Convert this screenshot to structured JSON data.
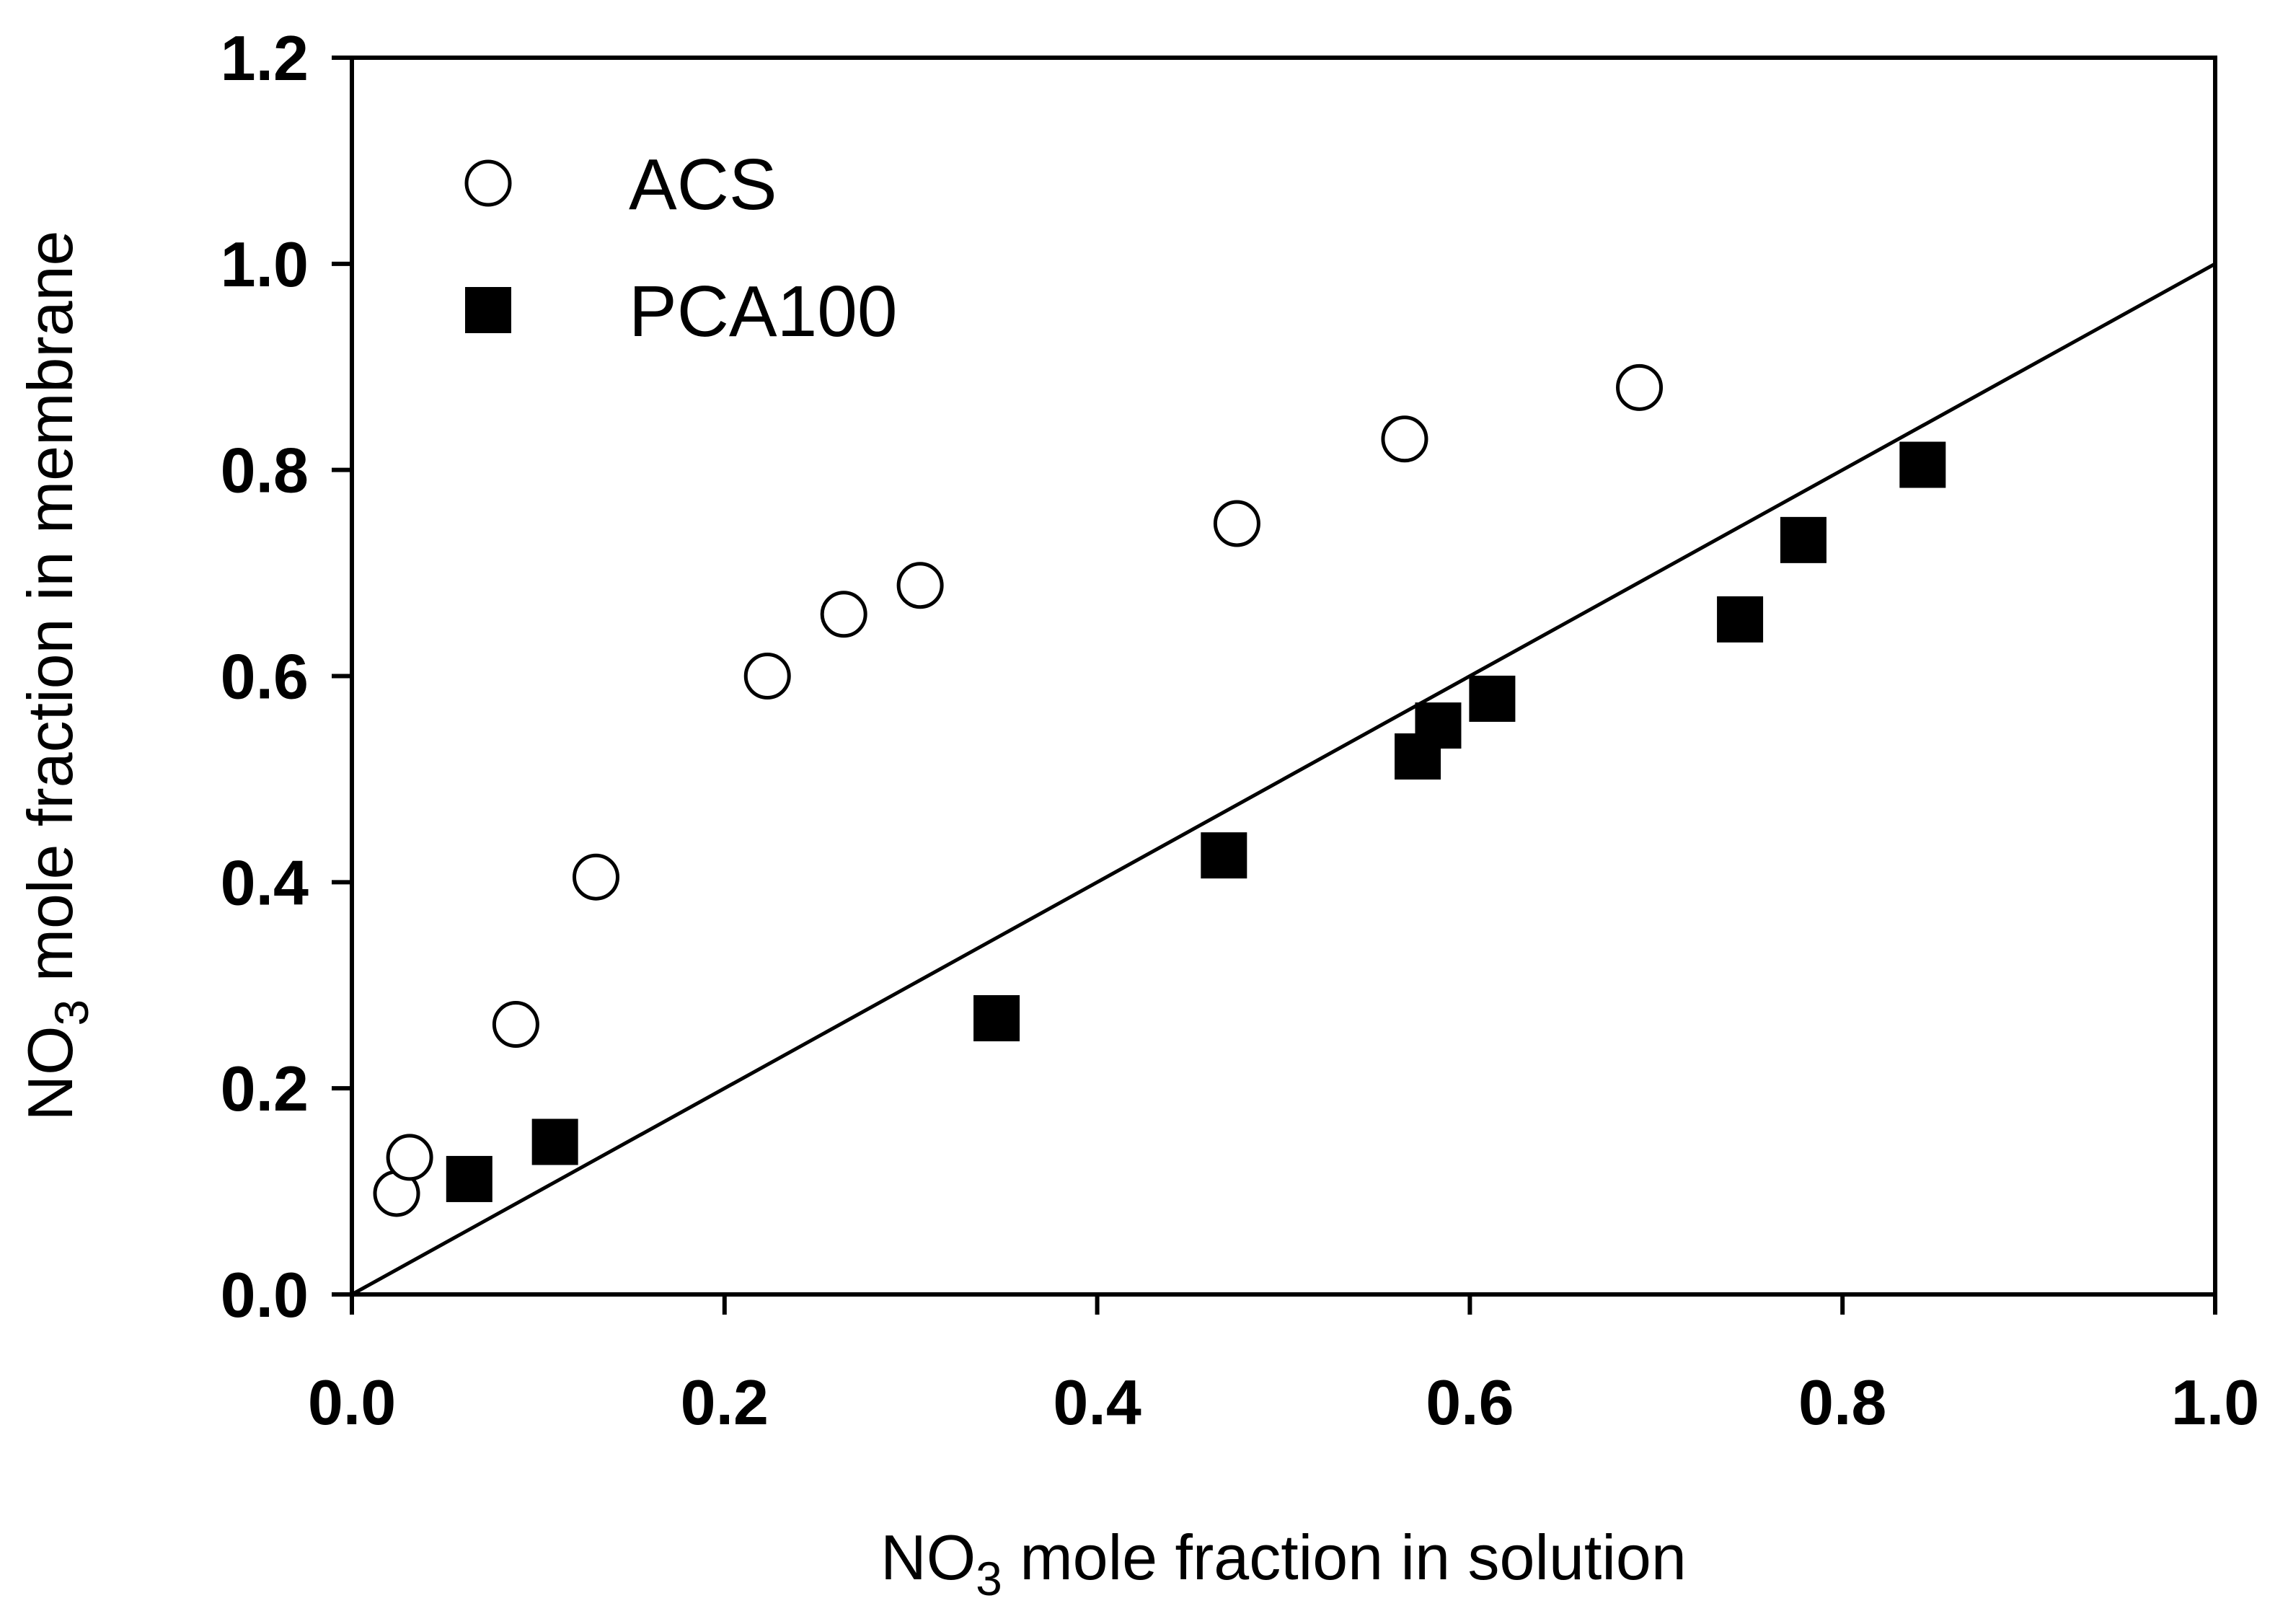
{
  "chart_data": {
    "type": "scatter",
    "title": "",
    "xlabel": {
      "base": "NO",
      "sub": "3",
      "rest": " mole fraction in solution"
    },
    "ylabel": {
      "base": "NO",
      "sub": "3",
      "rest": " mole fraction in membrane"
    },
    "xlim": [
      0.0,
      1.0
    ],
    "ylim": [
      0.0,
      1.2
    ],
    "xticks": [
      "0.0",
      "0.2",
      "0.4",
      "0.6",
      "0.8",
      "1.0"
    ],
    "yticks": [
      "0.0",
      "0.2",
      "0.4",
      "0.6",
      "0.8",
      "1.0",
      "1.2"
    ],
    "grid": false,
    "legend_position": "top-left",
    "reference_line": {
      "name": "y = x",
      "points": [
        [
          0.0,
          0.0
        ],
        [
          1.0,
          1.0
        ]
      ]
    },
    "series": [
      {
        "name": "ACS",
        "marker": "open-circle",
        "points": [
          [
            0.024,
            0.098
          ],
          [
            0.031,
            0.133
          ],
          [
            0.088,
            0.262
          ],
          [
            0.131,
            0.405
          ],
          [
            0.223,
            0.6
          ],
          [
            0.264,
            0.66
          ],
          [
            0.305,
            0.688
          ],
          [
            0.475,
            0.748
          ],
          [
            0.565,
            0.83
          ],
          [
            0.691,
            0.88
          ]
        ]
      },
      {
        "name": "PCA100",
        "marker": "filled-square",
        "points": [
          [
            0.063,
            0.112
          ],
          [
            0.109,
            0.148
          ],
          [
            0.346,
            0.268
          ],
          [
            0.468,
            0.426
          ],
          [
            0.572,
            0.522
          ],
          [
            0.583,
            0.552
          ],
          [
            0.612,
            0.578
          ],
          [
            0.745,
            0.655
          ],
          [
            0.779,
            0.732
          ],
          [
            0.843,
            0.805
          ]
        ]
      }
    ]
  }
}
